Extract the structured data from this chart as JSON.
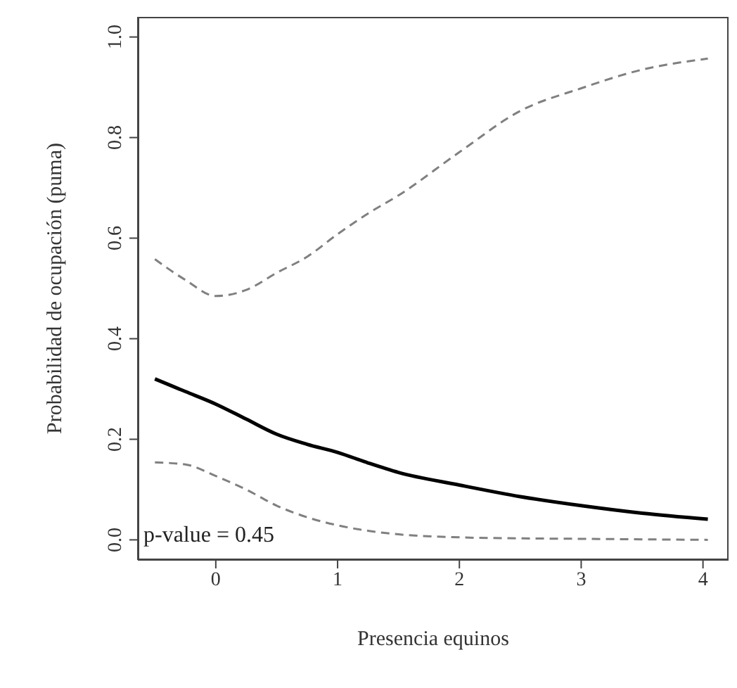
{
  "chart_data": {
    "type": "line",
    "xlabel": "Presencia equinos",
    "ylabel": "Probabilidad de ocupación (puma)",
    "x": [
      -0.5,
      -0.25,
      0,
      0.25,
      0.5,
      0.75,
      1,
      1.25,
      1.5,
      2,
      2.5,
      3,
      3.5,
      4.04
    ],
    "series": [
      {
        "color": "#000000",
        "line_style": "solid",
        "values": [
          0.32,
          0.295,
          0.27,
          0.24,
          0.21,
          0.19,
          0.174,
          0.153,
          0.134,
          0.109,
          0.086,
          0.068,
          0.053,
          0.041
        ]
      },
      {
        "color": "#808080",
        "line_style": "dashed",
        "values": [
          0.558,
          0.517,
          0.485,
          0.497,
          0.531,
          0.563,
          0.608,
          0.649,
          0.685,
          0.771,
          0.853,
          0.898,
          0.935,
          0.957
        ]
      },
      {
        "color": "#808080",
        "line_style": "dashed",
        "values": [
          0.154,
          0.15,
          0.127,
          0.1,
          0.068,
          0.045,
          0.029,
          0.018,
          0.011,
          0.005,
          0.003,
          0.002,
          0.001,
          0
        ]
      }
    ],
    "xlim": [
      -0.64,
      4.21
    ],
    "ylim": [
      -0.04,
      1.04
    ],
    "xticks": [
      0,
      1,
      2,
      3,
      4
    ],
    "yticks": [
      {
        "value": 0,
        "label": "0.0"
      },
      0.2,
      0.4,
      0.6,
      0.8,
      {
        "value": 1,
        "label": "1.0"
      }
    ],
    "annotations": [
      "p-value = 0.45"
    ],
    "grid": false,
    "marker": "none"
  }
}
